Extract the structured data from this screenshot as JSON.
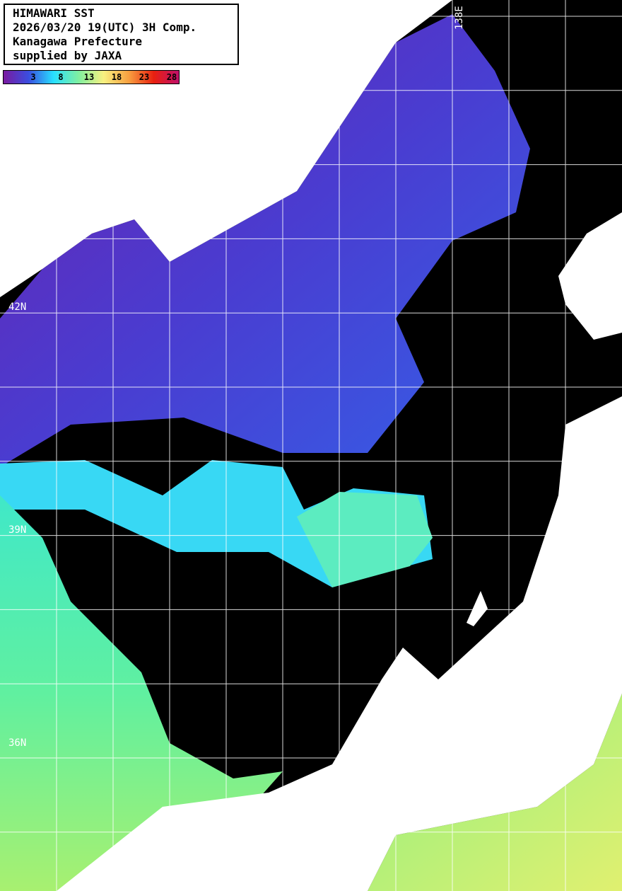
{
  "title": {
    "line1": "HIMAWARI SST",
    "line2": "2026/03/20 19(UTC) 3H Comp.",
    "line3": "Kanagawa Prefecture",
    "line4": "supplied by JAXA"
  },
  "legend": {
    "ticks": [
      "3",
      "8",
      "13",
      "18",
      "23",
      "28"
    ],
    "colors": [
      "#7a1aa0",
      "#3a4ee0",
      "#28e0ff",
      "#80f0a0",
      "#f8f080",
      "#f8a040",
      "#e82010",
      "#c0106a"
    ]
  },
  "grid_labels": {
    "lat": [
      "42N",
      "39N",
      "36N"
    ],
    "lon": [
      "138E"
    ]
  },
  "colors": {
    "land": "#ffffff",
    "no_data": "#000000",
    "grid": "#ffffff"
  }
}
